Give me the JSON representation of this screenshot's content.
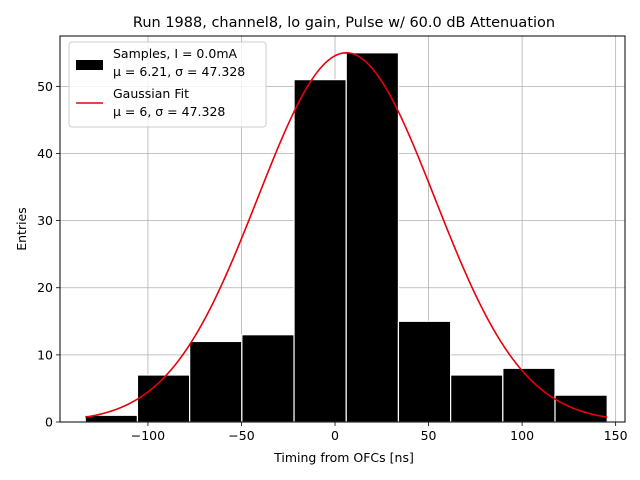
{
  "chart_data": {
    "type": "bar",
    "title": "Run 1988, channel8, lo gain, Pulse w/ 60.0 dB Attenuation",
    "xlabel": "Timing from OFCs [ns]",
    "ylabel": "Entries",
    "xlim": [
      -147,
      155
    ],
    "ylim": [
      0,
      57.5
    ],
    "grid": true,
    "legend_placement": "top-left",
    "xticks": [
      -100,
      -50,
      0,
      50,
      100,
      150
    ],
    "xtick_labels": [
      "−100",
      "−50",
      "0",
      "50",
      "100",
      "150"
    ],
    "yticks": [
      0,
      10,
      20,
      30,
      40,
      50
    ],
    "ytick_labels": [
      "0",
      "10",
      "20",
      "30",
      "40",
      "50"
    ],
    "histogram": {
      "name": "Samples, I = 0.0mA",
      "stats": "μ = 6.21, σ = 47.328",
      "color": "#000000",
      "edgecolor": "#ffffff",
      "bin_edges": [
        -133.5,
        -105.6,
        -77.7,
        -49.8,
        -21.9,
        6.0,
        33.9,
        61.8,
        89.7,
        117.6,
        145.5
      ],
      "counts": [
        1,
        7,
        12,
        13,
        51,
        55,
        15,
        7,
        8,
        4
      ]
    },
    "fit": {
      "name": "Gaussian Fit",
      "stats": "μ = 6, σ = 47.328",
      "color": "#e8000b",
      "mu": 6,
      "sigma": 47.328,
      "amplitude": 55,
      "x_range": [
        -133.5,
        145.5
      ]
    }
  }
}
